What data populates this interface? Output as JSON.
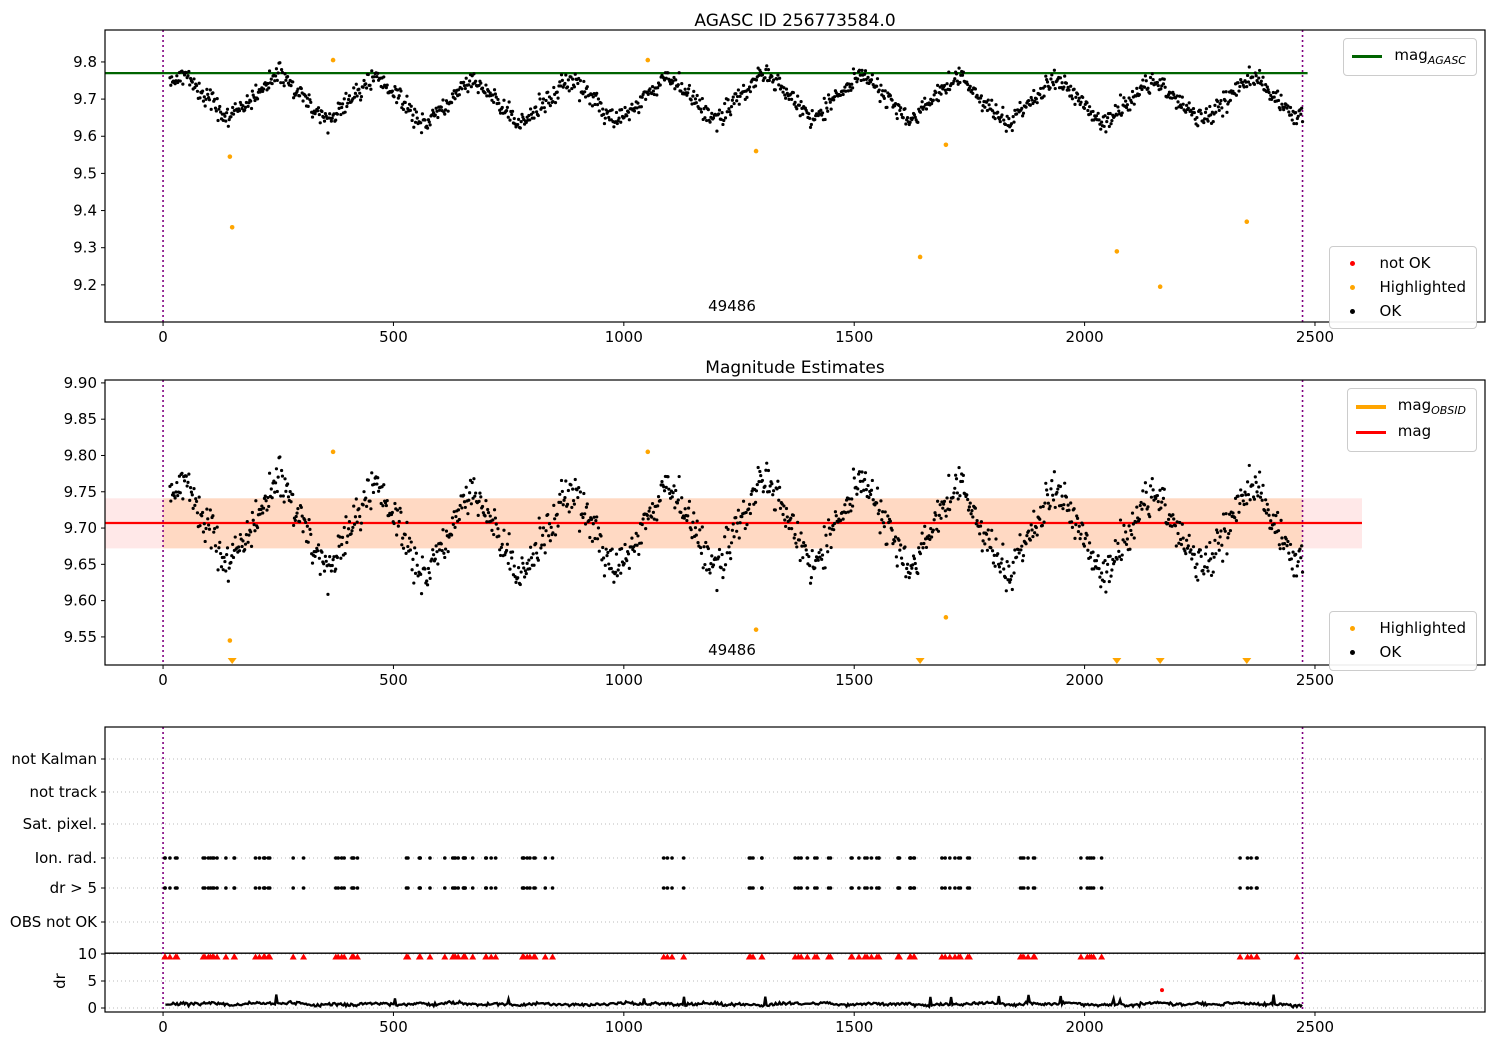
{
  "chart_data": [
    {
      "type": "scatter",
      "title": "AGASC ID 256773584.0",
      "xlim": [
        -126,
        2869
      ],
      "ylim": [
        9.1,
        9.886
      ],
      "x_ticks": [
        "0",
        "500",
        "1000",
        "1500",
        "2000",
        "2500"
      ],
      "y_ticks": [
        "9.8",
        "9.7",
        "9.6",
        "9.5",
        "9.4",
        "9.3",
        "9.2"
      ],
      "annotation": "49486",
      "annotation_x": 1235,
      "hline": {
        "value": 9.77,
        "color": "#006400",
        "x_from": -126,
        "x_to": 2484
      },
      "vlines": {
        "xs": [
          0,
          2473
        ],
        "color": "#800080"
      },
      "ok_series": {
        "name": "OK",
        "color": "#000000",
        "synth": {
          "seed": 42,
          "n": 1320,
          "x0": 15,
          "x1": 2473,
          "base": 9.701,
          "amp1": 0.036,
          "amp3": 0.02,
          "period": 211,
          "phase": 0.4,
          "slow_amp": 0.008,
          "slow_period": 1300,
          "slow_phase": 1.2,
          "noise": 0.0135
        }
      },
      "highlighted_points": {
        "name": "Highlighted",
        "color": "#ffa500",
        "points": [
          [
            145,
            9.545
          ],
          [
            150,
            9.355
          ],
          [
            369,
            9.805
          ],
          [
            1052,
            9.805
          ],
          [
            1287,
            9.56
          ],
          [
            1643,
            9.275
          ],
          [
            1699,
            9.577
          ],
          [
            2070,
            9.29
          ],
          [
            2164,
            9.195
          ],
          [
            2352,
            9.37
          ]
        ]
      },
      "not_ok_points": {
        "name": "not OK",
        "color": "#ff0000",
        "points": []
      },
      "legend_line": {
        "prefix": "mag",
        "sub": "AGASC",
        "color": "#006400"
      },
      "legend_markers": [
        {
          "label": "not OK",
          "color": "#ff0000"
        },
        {
          "label": "Highlighted",
          "color": "#ffa500"
        },
        {
          "label": "OK",
          "color": "#000000"
        }
      ]
    },
    {
      "type": "scatter",
      "title": "Magnitude Estimates",
      "xlim": [
        -126,
        2869
      ],
      "ylim": [
        9.5113,
        9.904
      ],
      "x_ticks": [
        "0",
        "500",
        "1000",
        "1500",
        "2000",
        "2500"
      ],
      "y_ticks": [
        "9.90",
        "9.85",
        "9.80",
        "9.75",
        "9.70",
        "9.65",
        "9.60",
        "9.55"
      ],
      "annotation": "49486",
      "annotation_x": 1235,
      "mag_line": {
        "value": 9.707,
        "color": "#ff0000",
        "x_from": -126,
        "x_to": 2602
      },
      "band": {
        "y_low": 9.672,
        "y_high": 9.741,
        "x_from": -126,
        "x_to": 2602,
        "color": "rgba(255,30,30,0.10)"
      },
      "obsid_band": {
        "x_from": 0,
        "x_to": 2473,
        "color": "rgba(255,150,30,0.18)"
      },
      "vlines": {
        "xs": [
          0,
          2473
        ],
        "color": "#800080"
      },
      "clipped_low_x": [
        150,
        1643,
        2070,
        2164,
        2352
      ],
      "legend_lines": [
        {
          "prefix": "mag",
          "sub": "OBSID",
          "color": "#ffa500"
        },
        {
          "prefix": "mag",
          "sub": "",
          "color": "#ff0000"
        }
      ],
      "legend_markers": [
        {
          "label": "Highlighted",
          "color": "#ffa500"
        },
        {
          "label": "OK",
          "color": "#000000"
        }
      ]
    },
    {
      "type": "flags",
      "categories": [
        "not Kalman",
        "not track",
        "Sat. pixel.",
        "Ion. rad.",
        "dr > 5",
        "OBS not OK"
      ],
      "active_row_indices": [
        3,
        4
      ],
      "dr_ticks": [
        "10",
        "5",
        "0"
      ],
      "ylabel": "dr",
      "x_ticks": [
        "0",
        "500",
        "1000",
        "1500",
        "2000",
        "2500"
      ],
      "vlines": {
        "xs": [
          0,
          2473
        ],
        "color": "#800080"
      },
      "clip_line_value": 10,
      "flag_color": "#000000",
      "red_color": "#ff0000",
      "flag_cluster_x": [
        20,
        45,
        85,
        115,
        150,
        215,
        235,
        290,
        385,
        405,
        425,
        540,
        570,
        620,
        645,
        665,
        705,
        775,
        795,
        840,
        1090,
        1120,
        1265,
        1285,
        1385,
        1410,
        1432,
        1510,
        1525,
        1540,
        1612,
        1635,
        1690,
        1715,
        1740,
        1860,
        1880,
        2005,
        2025,
        2345,
        2365
      ],
      "red_triangle_extra_x": [
        2461
      ],
      "not_ok_point": {
        "x": 2168,
        "dr": 3.3,
        "color": "#ff0000"
      },
      "dr_trace": {
        "color": "#000000",
        "synth": {
          "seed": 7,
          "x0": 5,
          "x1": 2473,
          "step": 2.8,
          "base": 0.62,
          "noise": 0.14
        }
      }
    }
  ]
}
